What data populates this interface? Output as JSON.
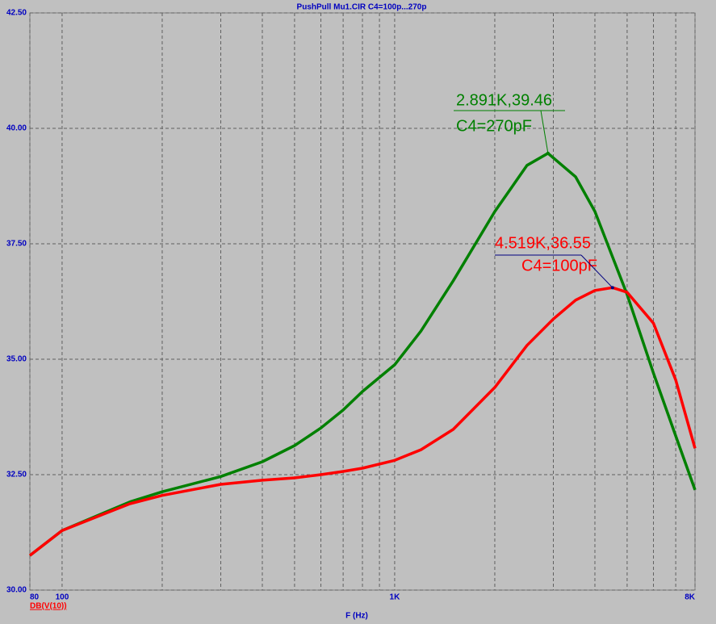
{
  "chart_data": {
    "type": "line",
    "title": "PushPull Mu1.CIR C4=100p...270p",
    "x_label": "F (Hz)",
    "y_label": "DB(V(10))",
    "log_x": true,
    "grid": true,
    "xlim": [
      80,
      8000
    ],
    "ylim": [
      30,
      42.5
    ],
    "xticks": [
      {
        "value": 80,
        "label": "80"
      },
      100,
      {
        "value": 1000,
        "label": "1K"
      },
      {
        "value": 8000,
        "label": "8K"
      }
    ],
    "minor_xticks": [
      200,
      300,
      400,
      500,
      600,
      700,
      800,
      900,
      2000,
      3000,
      4000,
      5000,
      6000,
      7000
    ],
    "yticks": [
      {
        "value": 30,
        "label": "30.00"
      },
      {
        "value": 32.5,
        "label": "32.50"
      },
      {
        "value": 35,
        "label": "35.00"
      },
      {
        "value": 37.5,
        "label": "37.50"
      },
      {
        "value": 40,
        "label": "40.00"
      },
      {
        "value": 42.5,
        "label": "42.50"
      }
    ],
    "series": [
      {
        "name": "C4=270pF",
        "color": "#008000",
        "x": [
          80,
          100,
          160,
          200,
          300,
          400,
          500,
          600,
          700,
          800,
          1000,
          1200,
          1500,
          2000,
          2500,
          2891,
          3500,
          4000,
          5000,
          6000,
          7000,
          8000
        ],
        "values": [
          30.75,
          31.29,
          31.91,
          32.13,
          32.46,
          32.78,
          33.13,
          33.51,
          33.9,
          34.3,
          34.88,
          35.61,
          36.7,
          38.2,
          39.2,
          39.46,
          38.95,
          38.2,
          36.4,
          34.7,
          33.34,
          32.17
        ],
        "peak": {
          "x": 2891,
          "y": 39.46,
          "label": "2.891K,39.46"
        }
      },
      {
        "name": "C4=100pF",
        "color": "#ff0000",
        "x": [
          80,
          100,
          160,
          200,
          300,
          400,
          500,
          600,
          700,
          800,
          1000,
          1200,
          1500,
          2000,
          2500,
          3000,
          3500,
          4000,
          4519,
          5000,
          6000,
          7000,
          8000
        ],
        "values": [
          30.75,
          31.29,
          31.87,
          32.05,
          32.29,
          32.38,
          32.43,
          32.5,
          32.57,
          32.64,
          32.81,
          33.04,
          33.48,
          34.39,
          35.3,
          35.87,
          36.28,
          36.49,
          36.55,
          36.45,
          35.78,
          34.55,
          33.07
        ],
        "peak": {
          "x": 4519,
          "y": 36.55,
          "label": "4.519K,36.55"
        }
      }
    ]
  }
}
